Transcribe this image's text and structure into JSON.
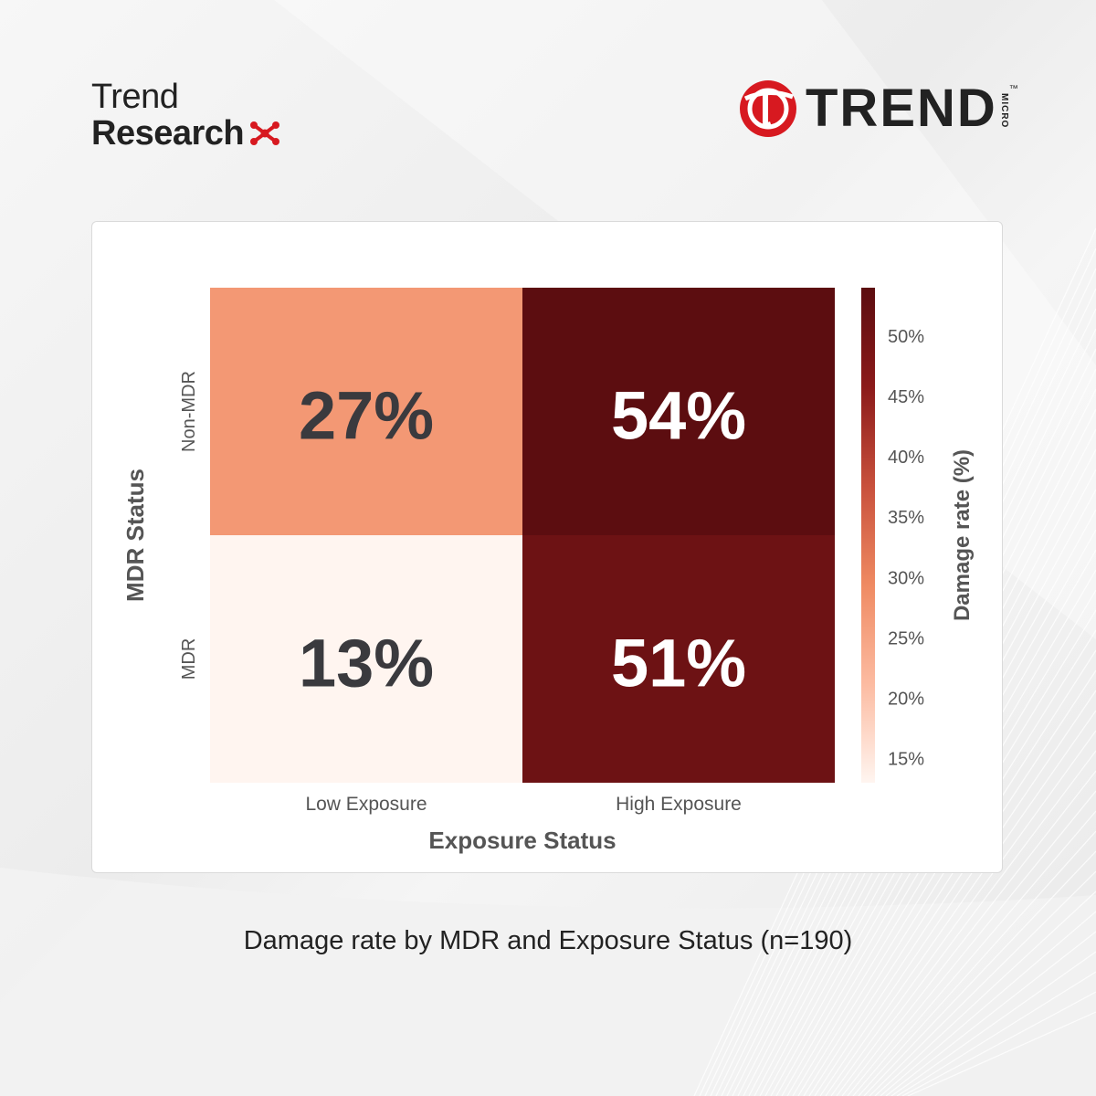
{
  "branding": {
    "left_logo_line1": "Trend",
    "left_logo_line2": "Research",
    "right_logo_word": "TREND",
    "right_logo_micro": "MICRO",
    "right_logo_tm": "™",
    "brand_red": "#d71920"
  },
  "caption": "Damage rate by MDR and Exposure Status (n=190)",
  "chart_data": {
    "type": "heatmap",
    "xlabel": "Exposure Status",
    "ylabel": "MDR Status",
    "x_categories": [
      "Low Exposure",
      "High Exposure"
    ],
    "y_categories": [
      "Non-MDR",
      "MDR"
    ],
    "values": [
      [
        27,
        54
      ],
      [
        13,
        51
      ]
    ],
    "value_labels": [
      [
        "27%",
        "54%"
      ],
      [
        "13%",
        "51%"
      ]
    ],
    "colorbar": {
      "label": "Damage rate (%)",
      "range": [
        13,
        54
      ],
      "ticks": [
        15,
        20,
        25,
        30,
        35,
        40,
        45,
        50
      ],
      "tick_labels": [
        "15%",
        "20%",
        "25%",
        "30%",
        "35%",
        "40%",
        "45%",
        "50%"
      ],
      "colors": [
        "#fff5f0",
        "#fcbba1",
        "#ef8a62",
        "#c8503c",
        "#8b1a1a",
        "#5c0d10"
      ]
    }
  }
}
